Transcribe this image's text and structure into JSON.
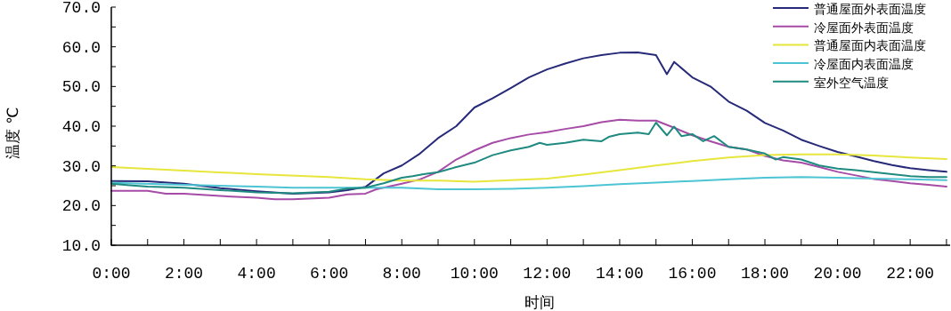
{
  "chart_data": {
    "type": "line",
    "xlabel": "时间",
    "ylabel": "温度 ℃",
    "legend": "top right",
    "grid": false,
    "marker": "none",
    "line_style": "solid",
    "xlim": [
      0,
      23.1
    ],
    "ylim": [
      10,
      70
    ],
    "xticks": [
      {
        "value": 0,
        "label": "0:00"
      },
      {
        "value": 1,
        "label": null
      },
      {
        "value": 2,
        "label": "2:00"
      },
      {
        "value": 3,
        "label": null
      },
      {
        "value": 4,
        "label": "4:00"
      },
      {
        "value": 5,
        "label": null
      },
      {
        "value": 6,
        "label": "6:00"
      },
      {
        "value": 7,
        "label": null
      },
      {
        "value": 8,
        "label": "8:00"
      },
      {
        "value": 9,
        "label": null
      },
      {
        "value": 10,
        "label": "10:00"
      },
      {
        "value": 11,
        "label": null
      },
      {
        "value": 12,
        "label": "12:00"
      },
      {
        "value": 13,
        "label": null
      },
      {
        "value": 14,
        "label": "14:00"
      },
      {
        "value": 15,
        "label": null
      },
      {
        "value": 16,
        "label": "16:00"
      },
      {
        "value": 17,
        "label": null
      },
      {
        "value": 18,
        "label": "18:00"
      },
      {
        "value": 19,
        "label": null
      },
      {
        "value": 20,
        "label": "20:00"
      },
      {
        "value": 21,
        "label": null
      },
      {
        "value": 22,
        "label": "22:00"
      },
      {
        "value": 23,
        "label": null
      }
    ],
    "yticks": [
      {
        "value": 10,
        "label": "10.0"
      },
      {
        "value": 15,
        "label": null
      },
      {
        "value": 20,
        "label": "20.0"
      },
      {
        "value": 25,
        "label": null
      },
      {
        "value": 30,
        "label": "30.0"
      },
      {
        "value": 35,
        "label": null
      },
      {
        "value": 40,
        "label": "40.0"
      },
      {
        "value": 45,
        "label": null
      },
      {
        "value": 50,
        "label": "50.0"
      },
      {
        "value": 55,
        "label": null
      },
      {
        "value": 60,
        "label": "60.0"
      },
      {
        "value": 65,
        "label": null
      },
      {
        "value": 70,
        "label": "70.0"
      }
    ],
    "series": [
      {
        "name": "普通屋面外表面温度",
        "color": "#262a78",
        "x": [
          0,
          1,
          2,
          3,
          4,
          5,
          6,
          6.5,
          7,
          7.5,
          8,
          8.5,
          9,
          9.5,
          10,
          10.5,
          11,
          11.5,
          12,
          12.5,
          13,
          13.5,
          14,
          14.5,
          15,
          15.3,
          15.5,
          16,
          16.5,
          17,
          17.5,
          18,
          18.5,
          19,
          19.5,
          20,
          20.5,
          21,
          21.5,
          22,
          22.5,
          23
        ],
        "values": [
          26.2,
          26.1,
          25.5,
          24.4,
          23.6,
          23.0,
          23.3,
          23.9,
          24.7,
          28.1,
          30.1,
          33.1,
          37.0,
          40.0,
          44.7,
          47.0,
          49.6,
          52.3,
          54.3,
          55.8,
          57.1,
          57.9,
          58.5,
          58.6,
          57.9,
          53.1,
          56.2,
          52.3,
          50.0,
          46.2,
          43.9,
          40.8,
          38.9,
          36.6,
          35.0,
          33.5,
          32.4,
          31.2,
          30.2,
          29.4,
          28.9,
          28.5
        ]
      },
      {
        "name": "冷屋面外表面温度",
        "color": "#a64ca6",
        "x": [
          0,
          1,
          1.5,
          2,
          3,
          4,
          4.5,
          5,
          6,
          6.5,
          7,
          7.3,
          8,
          8.5,
          9,
          9.5,
          10,
          10.5,
          11,
          11.5,
          12,
          12.5,
          13,
          13.5,
          14,
          14.5,
          15,
          15.5,
          16,
          16.5,
          17,
          17.5,
          18,
          18.5,
          19,
          19.5,
          20,
          20.5,
          21,
          21.5,
          22,
          22.5,
          23
        ],
        "values": [
          23.7,
          23.7,
          23.0,
          23.0,
          22.4,
          22.0,
          21.6,
          21.6,
          22.0,
          22.8,
          23.0,
          24.1,
          25.5,
          26.6,
          28.5,
          31.6,
          33.9,
          35.8,
          37.0,
          37.9,
          38.5,
          39.3,
          40.0,
          41.0,
          41.6,
          41.4,
          41.4,
          39.6,
          37.7,
          36.2,
          34.8,
          34.1,
          32.5,
          31.4,
          30.8,
          29.7,
          28.5,
          27.6,
          26.7,
          26.2,
          25.6,
          25.2,
          24.8
        ]
      },
      {
        "name": "普通屋面内表面温度",
        "color": "#e6e63c",
        "x": [
          0,
          2,
          4,
          6,
          7,
          8,
          9,
          10,
          12,
          13,
          14,
          15,
          16,
          17,
          18,
          19,
          20,
          21,
          22,
          23
        ],
        "values": [
          29.7,
          28.8,
          27.9,
          27.2,
          26.6,
          26.3,
          26.3,
          26.0,
          26.8,
          27.8,
          28.9,
          30.1,
          31.2,
          32.1,
          32.7,
          32.9,
          32.9,
          32.6,
          32.1,
          31.7
        ]
      },
      {
        "name": "冷屋面内表面温度",
        "color": "#4cc4d4",
        "x": [
          0,
          2,
          4,
          5,
          6,
          7,
          8,
          9,
          10,
          11,
          12,
          13,
          14,
          15,
          16,
          17,
          18,
          19,
          20,
          21,
          22,
          23
        ],
        "values": [
          25.7,
          25.2,
          24.8,
          24.5,
          24.5,
          24.5,
          24.5,
          24.1,
          24.1,
          24.2,
          24.5,
          24.9,
          25.4,
          25.8,
          26.2,
          26.6,
          27.0,
          27.2,
          27.0,
          26.8,
          26.6,
          26.4
        ]
      },
      {
        "name": "室外空气温度",
        "color": "#1f8a80",
        "x": [
          0,
          0.5,
          1,
          2,
          3,
          4,
          5,
          6,
          6.5,
          7,
          7.5,
          8,
          8.3,
          8.6,
          9,
          9.5,
          10,
          10.5,
          11,
          11.5,
          11.8,
          12,
          12.5,
          13,
          13.5,
          13.7,
          14,
          14.5,
          14.8,
          15,
          15.3,
          15.5,
          15.7,
          16,
          16.3,
          16.6,
          17,
          17.5,
          18,
          18.3,
          18.5,
          19,
          19.5,
          20,
          20.5,
          21,
          21.5,
          22,
          22.5,
          23
        ],
        "values": [
          25.5,
          25.1,
          24.8,
          24.5,
          23.9,
          23.3,
          23.1,
          23.5,
          24.3,
          24.5,
          25.6,
          27.0,
          27.4,
          27.9,
          28.4,
          29.7,
          30.8,
          32.7,
          33.9,
          34.8,
          35.8,
          35.3,
          35.8,
          36.6,
          36.2,
          37.3,
          38.0,
          38.4,
          38.0,
          40.9,
          37.7,
          39.9,
          37.5,
          38.0,
          36.2,
          37.5,
          34.8,
          34.1,
          33.1,
          31.6,
          32.2,
          31.6,
          30.1,
          29.3,
          28.9,
          28.4,
          27.9,
          27.4,
          27.2,
          27.2
        ]
      }
    ]
  }
}
